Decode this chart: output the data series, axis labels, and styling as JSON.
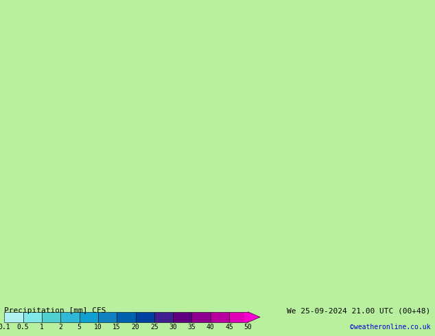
{
  "title_left": "Precipitation [mm] CFS",
  "title_right": "We 25-09-2024 21.00 UTC (00+48)",
  "credit": "©weatheronline.co.uk",
  "colorbar_values": [
    0.1,
    0.5,
    1,
    2,
    5,
    10,
    15,
    20,
    25,
    30,
    35,
    40,
    45,
    50
  ],
  "colorbar_colors": [
    "#b0f0f0",
    "#80e8e8",
    "#50d0d0",
    "#30b8d8",
    "#10a0d0",
    "#1080c0",
    "#0060b0",
    "#0040a0",
    "#002080",
    "#400080",
    "#800090",
    "#b000a0",
    "#d000b0",
    "#f000c8",
    "#ff00e8"
  ],
  "map_bg_color": "#b8f0a0",
  "land_color": "#c8f0b0",
  "sea_color": "#a0d8f0",
  "border_color": "#808080",
  "fig_width": 6.34,
  "fig_height": 4.9,
  "dpi": 100,
  "bottom_bar_height": 0.09,
  "title_fontsize": 8,
  "credit_fontsize": 7,
  "tick_fontsize": 7
}
